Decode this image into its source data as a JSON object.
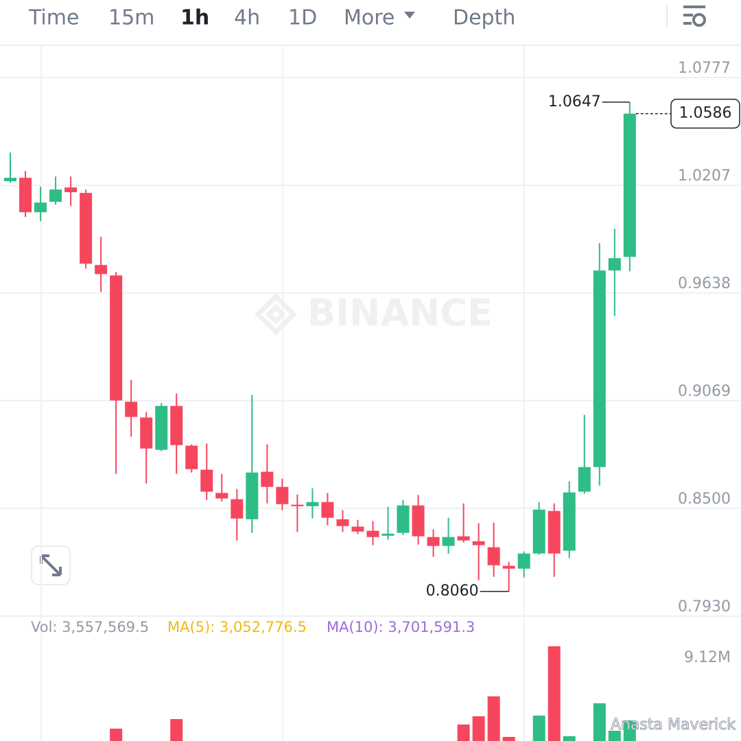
{
  "toolbar": {
    "tabs": [
      "Time",
      "15m",
      "1h",
      "4h",
      "1D",
      "More",
      "Depth"
    ],
    "active": 2
  },
  "chart_data": {
    "type": "candlestick",
    "watermark": "BINANCE",
    "up_color": "#2ebd85",
    "down_color": "#f6465d",
    "open": [
      1.0229,
      1.0247,
      1.0065,
      1.012,
      1.0196,
      1.0167,
      0.9786,
      0.9731,
      0.9063,
      0.898,
      0.8809,
      0.9041,
      0.8831,
      0.8704,
      0.8581,
      0.8548,
      0.8442,
      0.8693,
      0.8613,
      0.8519,
      0.8511,
      0.8533,
      0.8442,
      0.8403,
      0.8381,
      0.8355,
      0.837,
      0.8515,
      0.8348,
      0.8301,
      0.8352,
      0.8326,
      0.8294,
      0.8196,
      0.8181,
      0.8261,
      0.8486,
      0.8276,
      0.8588,
      0.8718,
      0.9757,
      0.9829
    ],
    "high": [
      1.0381,
      1.0283,
      1.02,
      1.0254,
      1.0254,
      1.0185,
      0.9935,
      0.9749,
      0.9179,
      0.9009,
      0.9056,
      0.9107,
      0.8838,
      0.8842,
      0.8682,
      0.8602,
      0.9099,
      0.8838,
      0.8657,
      0.8573,
      0.8606,
      0.8581,
      0.849,
      0.8439,
      0.8432,
      0.8508,
      0.8544,
      0.857,
      0.8388,
      0.845,
      0.8526,
      0.8421,
      0.8424,
      0.8217,
      0.8272,
      0.8533,
      0.8526,
      0.8642,
      0.8994,
      0.9902,
      0.9978,
      1.0647
    ],
    "low": [
      1.0221,
      1.004,
      1.0018,
      1.0105,
      1.0098,
      0.9767,
      0.9644,
      0.8682,
      0.8878,
      0.8631,
      0.8802,
      0.8682,
      0.8689,
      0.8544,
      0.8537,
      0.833,
      0.837,
      0.8526,
      0.849,
      0.8374,
      0.8446,
      0.841,
      0.8374,
      0.8363,
      0.8305,
      0.8334,
      0.8359,
      0.8308,
      0.8243,
      0.8261,
      0.8319,
      0.812,
      0.8138,
      0.806,
      0.8134,
      0.8254,
      0.8138,
      0.8236,
      0.8577,
      0.862,
      0.9517,
      0.9753
    ],
    "close": [
      1.0247,
      1.0065,
      1.0116,
      1.0185,
      1.0171,
      0.9793,
      0.9738,
      0.907,
      0.8983,
      0.8816,
      0.9041,
      0.8834,
      0.8707,
      0.8588,
      0.8552,
      0.8446,
      0.8689,
      0.8613,
      0.8522,
      0.8511,
      0.8533,
      0.845,
      0.8406,
      0.8377,
      0.8348,
      0.8366,
      0.8515,
      0.8352,
      0.8301,
      0.8348,
      0.833,
      0.8305,
      0.8199,
      0.8181,
      0.8261,
      0.8493,
      0.8261,
      0.8584,
      0.8718,
      0.9757,
      0.9822,
      1.0586
    ],
    "ylim": [
      0.793,
      1.0777
    ],
    "yticks": [
      1.0777,
      1.0207,
      0.9638,
      0.9069,
      {
        "value": 0.85,
        "label": "0.8500"
      },
      {
        "value": 0.793,
        "label": "0.7930"
      }
    ],
    "high_label": "1.0647",
    "low_label": "0.8060",
    "last_label": "1.0586",
    "volume": {
      "legend": [
        {
          "text": "Vol: 3,557,569.5",
          "color": "#929aa5"
        },
        {
          "text": "MA(5): 3,052,776.5",
          "color": "#f0b90b"
        },
        {
          "text": "MA(10): 3,701,591.3",
          "color": "#9c6ade"
        }
      ],
      "values": [
        1200000,
        1200000,
        1200000,
        1200000,
        1200000,
        1200000,
        1200000,
        2710000,
        1200000,
        1200000,
        1200000,
        3700000,
        1200000,
        1200000,
        1200000,
        1200000,
        1200000,
        1200000,
        1200000,
        1200000,
        1200000,
        1200000,
        1200000,
        1200000,
        1200000,
        1200000,
        1200000,
        1200000,
        1200000,
        1200000,
        3140000,
        3990000,
        6060000,
        1850000,
        1200000,
        4060000,
        11260000,
        1920000,
        1200000,
        5340000,
        2490000,
        3557569.5
      ],
      "ylim": [
        0,
        9120000
      ],
      "yticks": [
        {
          "value": 9120000,
          "label": "9.12M"
        }
      ]
    },
    "credit": "Anasta Maverick"
  }
}
